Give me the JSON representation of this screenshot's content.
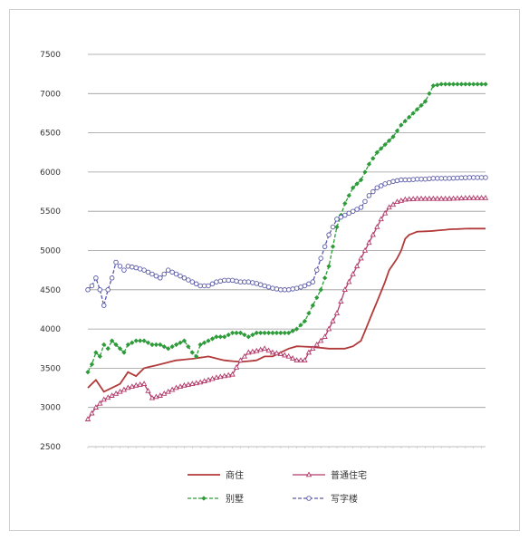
{
  "chart_data": {
    "type": "line",
    "title": "",
    "xlabel": "",
    "ylabel": "",
    "ylim": [
      2500,
      7500
    ],
    "yticks": [
      2500,
      3000,
      3500,
      4000,
      4500,
      5000,
      5500,
      6000,
      6500,
      7000,
      7500
    ],
    "x_points": 100,
    "grid": true,
    "legend_position": "bottom",
    "colors": {
      "series1": "#b23a3a",
      "series2": "#b23a6a",
      "series3": "#2e9b3a",
      "series4": "#5a5aa8",
      "grid": "#9a9a9a",
      "axis": "#bdbdbd"
    },
    "series": [
      {
        "name": "商住",
        "marker": "none",
        "anchors": [
          [
            0,
            3250
          ],
          [
            2,
            3350
          ],
          [
            4,
            3200
          ],
          [
            8,
            3300
          ],
          [
            10,
            3450
          ],
          [
            12,
            3400
          ],
          [
            14,
            3500
          ],
          [
            18,
            3550
          ],
          [
            22,
            3600
          ],
          [
            26,
            3620
          ],
          [
            30,
            3650
          ],
          [
            34,
            3600
          ],
          [
            38,
            3580
          ],
          [
            42,
            3600
          ],
          [
            44,
            3650
          ],
          [
            46,
            3650
          ],
          [
            48,
            3700
          ],
          [
            50,
            3750
          ],
          [
            52,
            3780
          ],
          [
            56,
            3770
          ],
          [
            58,
            3760
          ],
          [
            60,
            3750
          ],
          [
            64,
            3750
          ],
          [
            66,
            3780
          ],
          [
            68,
            3850
          ],
          [
            70,
            4100
          ],
          [
            72,
            4350
          ],
          [
            74,
            4600
          ],
          [
            75,
            4750
          ],
          [
            77,
            4900
          ],
          [
            78,
            5000
          ],
          [
            79,
            5150
          ],
          [
            80,
            5200
          ],
          [
            82,
            5240
          ],
          [
            86,
            5250
          ],
          [
            90,
            5270
          ],
          [
            95,
            5280
          ],
          [
            99,
            5280
          ]
        ]
      },
      {
        "name": "普通住宅",
        "marker": "open-triangle",
        "anchors": [
          [
            0,
            2850
          ],
          [
            2,
            3000
          ],
          [
            4,
            3100
          ],
          [
            6,
            3150
          ],
          [
            8,
            3200
          ],
          [
            10,
            3250
          ],
          [
            12,
            3280
          ],
          [
            14,
            3300
          ],
          [
            16,
            3120
          ],
          [
            18,
            3150
          ],
          [
            20,
            3200
          ],
          [
            22,
            3250
          ],
          [
            24,
            3280
          ],
          [
            26,
            3300
          ],
          [
            28,
            3320
          ],
          [
            30,
            3350
          ],
          [
            32,
            3380
          ],
          [
            34,
            3400
          ],
          [
            36,
            3420
          ],
          [
            38,
            3600
          ],
          [
            40,
            3700
          ],
          [
            42,
            3720
          ],
          [
            44,
            3750
          ],
          [
            46,
            3700
          ],
          [
            48,
            3680
          ],
          [
            50,
            3650
          ],
          [
            52,
            3600
          ],
          [
            54,
            3600
          ],
          [
            55,
            3700
          ],
          [
            57,
            3800
          ],
          [
            59,
            3900
          ],
          [
            60,
            4000
          ],
          [
            62,
            4200
          ],
          [
            64,
            4500
          ],
          [
            66,
            4700
          ],
          [
            68,
            4900
          ],
          [
            70,
            5100
          ],
          [
            72,
            5300
          ],
          [
            73,
            5400
          ],
          [
            75,
            5550
          ],
          [
            77,
            5620
          ],
          [
            79,
            5650
          ],
          [
            82,
            5660
          ],
          [
            86,
            5660
          ],
          [
            90,
            5660
          ],
          [
            95,
            5670
          ],
          [
            99,
            5670
          ]
        ]
      },
      {
        "name": "别墅",
        "marker": "filled-diamond",
        "anchors": [
          [
            0,
            3450
          ],
          [
            1,
            3550
          ],
          [
            2,
            3700
          ],
          [
            3,
            3650
          ],
          [
            4,
            3800
          ],
          [
            5,
            3750
          ],
          [
            6,
            3850
          ],
          [
            7,
            3800
          ],
          [
            8,
            3750
          ],
          [
            9,
            3700
          ],
          [
            10,
            3800
          ],
          [
            12,
            3850
          ],
          [
            14,
            3850
          ],
          [
            16,
            3800
          ],
          [
            18,
            3800
          ],
          [
            20,
            3750
          ],
          [
            22,
            3800
          ],
          [
            24,
            3850
          ],
          [
            26,
            3700
          ],
          [
            27,
            3650
          ],
          [
            28,
            3800
          ],
          [
            30,
            3850
          ],
          [
            32,
            3900
          ],
          [
            34,
            3900
          ],
          [
            36,
            3950
          ],
          [
            38,
            3950
          ],
          [
            40,
            3900
          ],
          [
            42,
            3950
          ],
          [
            44,
            3950
          ],
          [
            46,
            3950
          ],
          [
            48,
            3950
          ],
          [
            50,
            3950
          ],
          [
            52,
            4000
          ],
          [
            54,
            4100
          ],
          [
            55,
            4200
          ],
          [
            56,
            4300
          ],
          [
            57,
            4400
          ],
          [
            58,
            4500
          ],
          [
            60,
            4800
          ],
          [
            62,
            5300
          ],
          [
            64,
            5600
          ],
          [
            66,
            5800
          ],
          [
            68,
            5900
          ],
          [
            70,
            6100
          ],
          [
            72,
            6250
          ],
          [
            74,
            6350
          ],
          [
            76,
            6450
          ],
          [
            78,
            6600
          ],
          [
            80,
            6700
          ],
          [
            82,
            6800
          ],
          [
            84,
            6900
          ],
          [
            85,
            7000
          ],
          [
            86,
            7100
          ],
          [
            88,
            7120
          ],
          [
            90,
            7120
          ],
          [
            95,
            7120
          ],
          [
            99,
            7120
          ]
        ]
      },
      {
        "name": "写字楼",
        "marker": "open-circle",
        "anchors": [
          [
            0,
            4500
          ],
          [
            1,
            4550
          ],
          [
            2,
            4650
          ],
          [
            3,
            4500
          ],
          [
            4,
            4300
          ],
          [
            5,
            4500
          ],
          [
            6,
            4650
          ],
          [
            7,
            4850
          ],
          [
            8,
            4800
          ],
          [
            9,
            4750
          ],
          [
            10,
            4800
          ],
          [
            12,
            4780
          ],
          [
            14,
            4750
          ],
          [
            16,
            4700
          ],
          [
            18,
            4650
          ],
          [
            20,
            4750
          ],
          [
            22,
            4700
          ],
          [
            24,
            4650
          ],
          [
            26,
            4600
          ],
          [
            28,
            4550
          ],
          [
            30,
            4550
          ],
          [
            32,
            4600
          ],
          [
            34,
            4620
          ],
          [
            36,
            4620
          ],
          [
            38,
            4600
          ],
          [
            40,
            4600
          ],
          [
            42,
            4580
          ],
          [
            44,
            4550
          ],
          [
            46,
            4520
          ],
          [
            48,
            4500
          ],
          [
            50,
            4500
          ],
          [
            52,
            4520
          ],
          [
            54,
            4550
          ],
          [
            56,
            4600
          ],
          [
            58,
            4900
          ],
          [
            60,
            5200
          ],
          [
            62,
            5400
          ],
          [
            64,
            5450
          ],
          [
            66,
            5500
          ],
          [
            68,
            5550
          ],
          [
            70,
            5700
          ],
          [
            72,
            5800
          ],
          [
            74,
            5850
          ],
          [
            76,
            5880
          ],
          [
            78,
            5900
          ],
          [
            80,
            5900
          ],
          [
            82,
            5910
          ],
          [
            84,
            5910
          ],
          [
            86,
            5920
          ],
          [
            88,
            5920
          ],
          [
            90,
            5920
          ],
          [
            95,
            5930
          ],
          [
            99,
            5930
          ]
        ]
      }
    ]
  }
}
